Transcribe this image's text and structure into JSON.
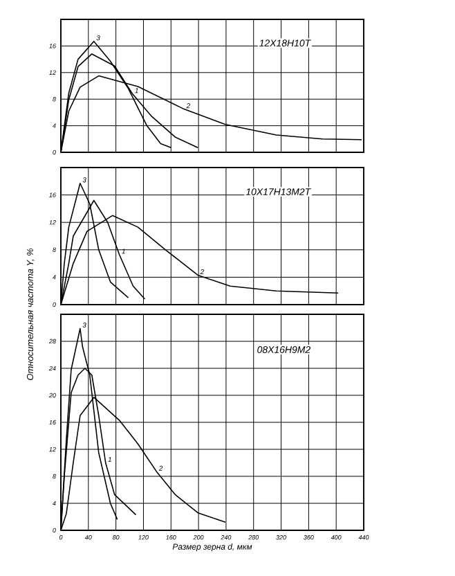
{
  "chart_data": [
    {
      "type": "line",
      "title": "12Х18Н10Т",
      "xlim": [
        0,
        440
      ],
      "ylim": [
        0,
        20
      ],
      "xticks": [
        0,
        40,
        80,
        120,
        160,
        200,
        240,
        280,
        320,
        360,
        400,
        440
      ],
      "yticks": [
        0,
        4,
        8,
        12,
        16
      ],
      "tick_labels": "y",
      "grid": true,
      "marker": "none",
      "line_style": "solid",
      "series": [
        {
          "name": "1",
          "color": "#000000",
          "x": [
            0,
            11.5,
            25,
            45,
            78,
            104,
            132,
            166,
            199
          ],
          "values": [
            0,
            7.9,
            12.9,
            14.8,
            13,
            8.8,
            5.4,
            2.3,
            0.7
          ]
        },
        {
          "name": "2",
          "color": "#000000",
          "x": [
            0,
            11.5,
            28,
            55,
            112,
            179,
            239,
            313,
            380,
            437
          ],
          "values": [
            0,
            6.2,
            9.8,
            11.5,
            9.9,
            6.5,
            4.2,
            2.6,
            2.0,
            1.9
          ]
        },
        {
          "name": "3",
          "color": "#000000",
          "x": [
            0,
            11.5,
            25,
            48,
            72,
            98,
            125,
            145,
            160
          ],
          "values": [
            0,
            8.9,
            14,
            16.7,
            13.7,
            9.6,
            4,
            1.3,
            0.7
          ]
        }
      ]
    },
    {
      "type": "line",
      "title": "10Х17Н13М2Т",
      "xlim": [
        0,
        440
      ],
      "ylim": [
        0,
        20
      ],
      "xticks": [
        0,
        40,
        80,
        120,
        160,
        200,
        240,
        280,
        320,
        360,
        400,
        440
      ],
      "yticks": [
        0,
        4,
        8,
        12,
        16
      ],
      "tick_labels": "y",
      "grid": true,
      "marker": "none",
      "line_style": "solid",
      "series": [
        {
          "name": "1",
          "color": "#000000",
          "x": [
            0,
            11.5,
            18,
            48,
            68,
            85,
            105,
            122
          ],
          "values": [
            0,
            6,
            10,
            15.2,
            12,
            7.3,
            2.7,
            0.8
          ]
        },
        {
          "name": "2",
          "color": "#000000",
          "x": [
            0,
            18,
            38,
            75,
            112,
            152,
            199,
            246,
            313,
            403
          ],
          "values": [
            0,
            6,
            10.7,
            13,
            11.3,
            8,
            4.3,
            2.7,
            2,
            1.7
          ]
        },
        {
          "name": "3",
          "color": "#000000",
          "x": [
            0,
            5,
            11.5,
            28,
            42,
            55,
            72,
            98
          ],
          "values": [
            0,
            6,
            11.3,
            17.7,
            14.7,
            8,
            3.3,
            1
          ]
        }
      ]
    },
    {
      "type": "line",
      "title": "08Х16Н9М2",
      "xlabel": "Размер зерна *d*, мкм",
      "ylabel": "Относительная частота *Y*, %",
      "xlim": [
        0,
        440
      ],
      "ylim": [
        0,
        32
      ],
      "xticks": [
        0,
        40,
        80,
        120,
        160,
        200,
        240,
        280,
        320,
        360,
        400,
        440
      ],
      "yticks": [
        0,
        4,
        8,
        12,
        16,
        20,
        24,
        28
      ],
      "grid": true,
      "marker": "none",
      "line_style": "solid",
      "series": [
        {
          "name": "1",
          "color": "#000000",
          "x": [
            0,
            5,
            15,
            25,
            35,
            45,
            55,
            65,
            78,
            109
          ],
          "values": [
            0,
            8,
            20.4,
            23,
            24,
            23,
            17,
            10,
            5.3,
            2.3
          ]
        },
        {
          "name": "2",
          "color": "#000000",
          "x": [
            0,
            8,
            18,
            28,
            48,
            85,
            112,
            139,
            166,
            199,
            239
          ],
          "values": [
            0,
            2.5,
            10,
            17,
            19.7,
            16.3,
            12.8,
            8.7,
            5.3,
            2.6,
            1.2
          ]
        },
        {
          "name": "3",
          "color": "#000000",
          "x": [
            0,
            8,
            15,
            28,
            31.5,
            42,
            55,
            72,
            82
          ],
          "values": [
            0,
            13.5,
            23.8,
            29.9,
            27.2,
            23,
            11.5,
            4,
            1.6
          ]
        }
      ]
    }
  ]
}
